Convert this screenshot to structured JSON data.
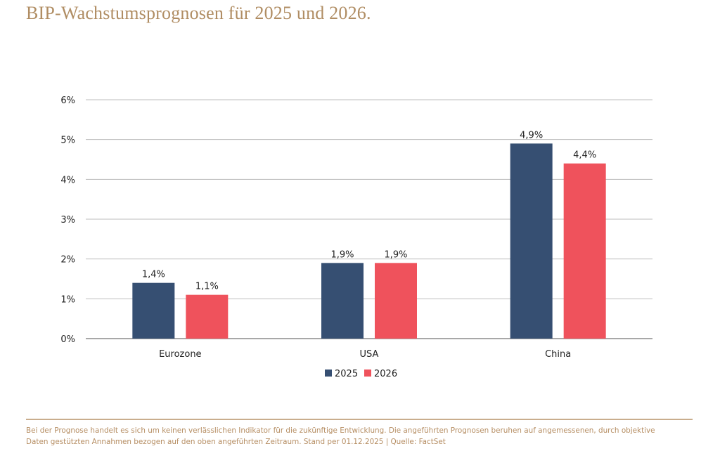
{
  "title": "BIP-Wachstumsprognosen für 2025 und 2026.",
  "chart_data": {
    "type": "bar",
    "title": "BIP-Wachstumsprognosen für 2025 und 2026.",
    "xlabel": "",
    "ylabel": "",
    "categories": [
      "Eurozone",
      "USA",
      "China"
    ],
    "series": [
      {
        "name": "2025",
        "color": "#364f72",
        "values": [
          1.4,
          1.9,
          4.9
        ],
        "labels": [
          "1,4%",
          "1,9%",
          "4,9%"
        ]
      },
      {
        "name": "2026",
        "color": "#ef525c",
        "values": [
          1.1,
          1.9,
          4.4
        ],
        "labels": [
          "1,1%",
          "1,9%",
          "4,4%"
        ]
      }
    ],
    "ylim": [
      0,
      6
    ],
    "yticks": [
      0,
      1,
      2,
      3,
      4,
      5,
      6
    ],
    "ytick_labels": [
      "0%",
      "1%",
      "2%",
      "3%",
      "4%",
      "5%",
      "6%"
    ],
    "grid": true,
    "legend_position": "bottom-center"
  },
  "footer": {
    "line1": "Bei der Prognose handelt es sich um keinen verlässlichen Indikator für die zukünftige Entwicklung. Die angeführten Prognosen beruhen auf angemessenen, durch objektive",
    "line2": "Daten gestützten Annahmen bezogen auf den oben angeführten Zeitraum. Stand per 01.12.2025 | Quelle: FactSet"
  },
  "colors": {
    "title": "#b08d63",
    "footer": "#b68e63",
    "rule": "#c9ad8d",
    "series_2025": "#364f72",
    "series_2026": "#ef525c"
  }
}
